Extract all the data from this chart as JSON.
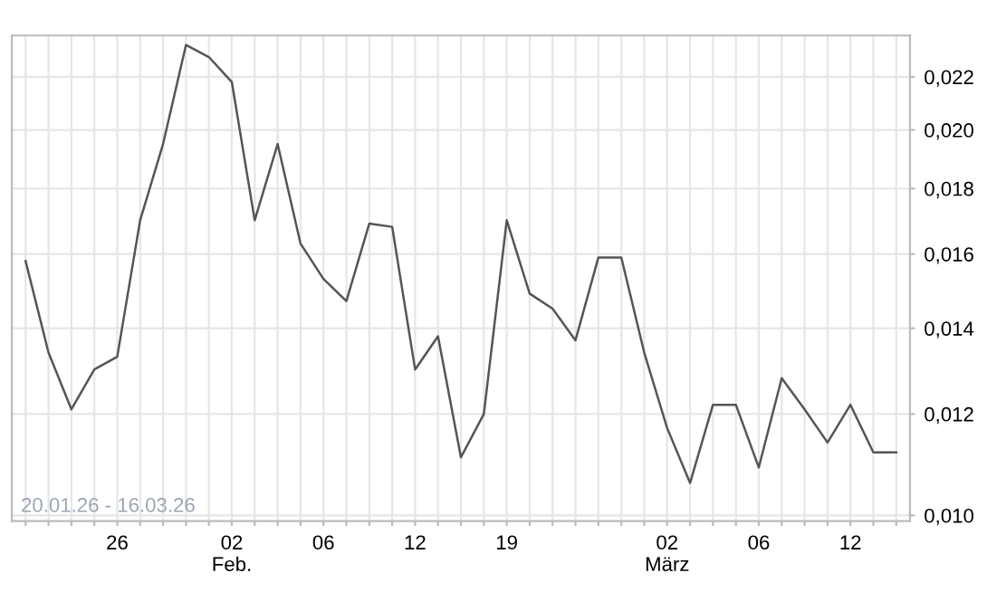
{
  "chart_data": {
    "type": "line",
    "log": "y",
    "grid": true,
    "marker": "none",
    "line_style": "solid",
    "categories": [
      null,
      null,
      null,
      null,
      "26",
      null,
      null,
      null,
      null,
      "02\nFeb.",
      null,
      null,
      null,
      "06",
      null,
      null,
      null,
      "12",
      null,
      null,
      null,
      "19",
      null,
      null,
      null,
      null,
      null,
      null,
      "02\nMärz",
      null,
      null,
      null,
      "06",
      null,
      null,
      null,
      "12",
      null,
      null
    ],
    "series": [
      {
        "color": "#555555",
        "values": [
          0.0158,
          0.0134,
          0.0121,
          0.013,
          0.0133,
          0.017,
          0.0195,
          0.0233,
          0.0228,
          0.0218,
          0.017,
          0.0195,
          0.0163,
          0.0153,
          0.0147,
          0.0169,
          0.0168,
          0.013,
          0.0138,
          0.0111,
          0.012,
          0.017,
          0.0149,
          0.0145,
          0.0137,
          0.0159,
          0.0159,
          0.0134,
          0.0117,
          0.0106,
          0.0122,
          0.0122,
          0.0109,
          0.0128,
          0.0121,
          0.0114,
          0.0122,
          0.0112,
          0.0112
        ]
      }
    ],
    "ylim": [
      0.0099,
      0.0237
    ],
    "yticks": [
      {
        "value": 0.01,
        "label": "0,010"
      },
      {
        "value": 0.012,
        "label": "0,012"
      },
      {
        "value": 0.014,
        "label": "0,014"
      },
      {
        "value": 0.016,
        "label": "0,016"
      },
      {
        "value": 0.018,
        "label": "0,018"
      },
      {
        "value": 0.02,
        "label": "0,020"
      },
      {
        "value": 0.022,
        "label": "0,022"
      }
    ],
    "annotations": [
      "20.01.26 - 16.03.26"
    ]
  }
}
